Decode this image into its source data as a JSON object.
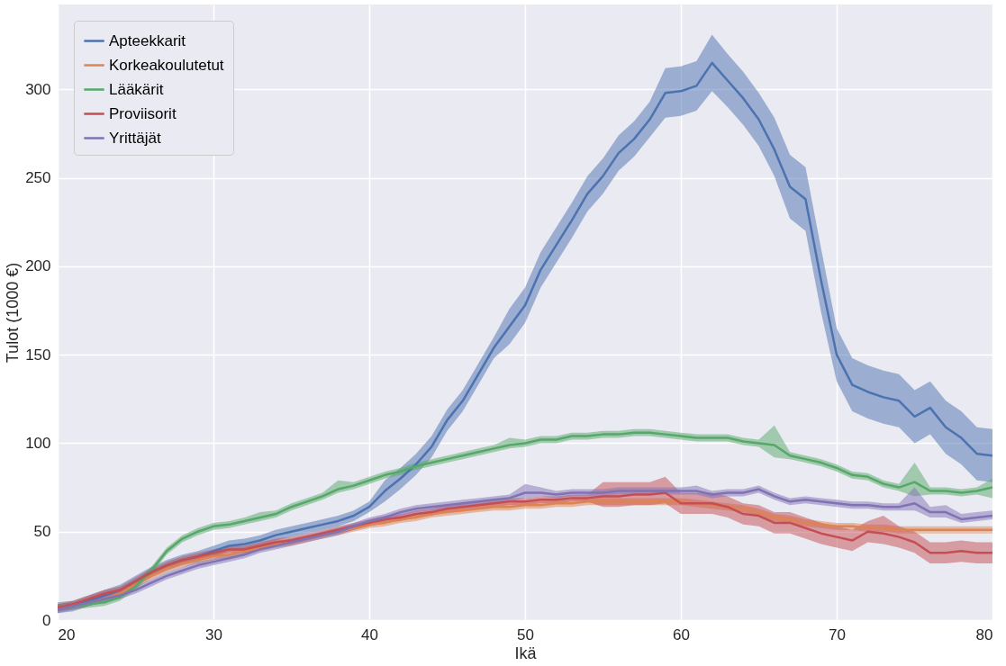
{
  "chart_data": {
    "type": "line",
    "xlabel": "Ikä",
    "ylabel": "Tulot (1000 €)",
    "x": [
      20,
      21,
      22,
      23,
      24,
      25,
      26,
      27,
      28,
      29,
      30,
      31,
      32,
      33,
      34,
      35,
      36,
      37,
      38,
      39,
      40,
      41,
      42,
      43,
      44,
      45,
      46,
      47,
      48,
      49,
      50,
      51,
      52,
      53,
      54,
      55,
      56,
      57,
      58,
      59,
      60,
      61,
      62,
      63,
      64,
      65,
      66,
      67,
      68,
      69,
      70,
      71,
      72,
      73,
      74,
      75,
      76,
      77,
      78,
      79,
      80
    ],
    "xlim": [
      20,
      80
    ],
    "xticks": [
      20,
      30,
      40,
      50,
      60,
      70,
      80
    ],
    "ylim": [
      0,
      348
    ],
    "yticks": [
      0,
      50,
      100,
      150,
      200,
      250,
      300
    ],
    "grid": true,
    "legend": "top left",
    "series": [
      {
        "name": "Apteekkarit",
        "color": "#4c72b0",
        "values": [
          7,
          8,
          11,
          14,
          17,
          22,
          27,
          31,
          34,
          36,
          39,
          42,
          43,
          45,
          48,
          50,
          52,
          54,
          56,
          59,
          64,
          73,
          80,
          88,
          98,
          113,
          124,
          139,
          154,
          166,
          178,
          198,
          212,
          226,
          241,
          251,
          264,
          272,
          283,
          298,
          299,
          302,
          315,
          305,
          295,
          283,
          266,
          245,
          238,
          192,
          150,
          133,
          129,
          126,
          124,
          115,
          120,
          109,
          103,
          94,
          93
        ],
        "lower": [
          4,
          5,
          8,
          11,
          14,
          19,
          24,
          28,
          31,
          33,
          36,
          39,
          40,
          42,
          45,
          47,
          49,
          51,
          53,
          56,
          61,
          67,
          74,
          82,
          92,
          107,
          118,
          133,
          148,
          156,
          168,
          188,
          202,
          216,
          231,
          241,
          254,
          262,
          273,
          284,
          285,
          288,
          299,
          290,
          280,
          268,
          251,
          227,
          220,
          174,
          135,
          118,
          114,
          111,
          109,
          100,
          105,
          94,
          88,
          79,
          78
        ],
        "upper": [
          10,
          11,
          14,
          17,
          20,
          25,
          30,
          34,
          37,
          39,
          42,
          45,
          46,
          48,
          51,
          53,
          55,
          57,
          59,
          62,
          67,
          79,
          86,
          94,
          104,
          119,
          130,
          145,
          160,
          176,
          188,
          208,
          222,
          236,
          251,
          261,
          274,
          282,
          293,
          312,
          313,
          316,
          331,
          320,
          310,
          298,
          284,
          263,
          256,
          210,
          165,
          148,
          144,
          141,
          139,
          130,
          135,
          124,
          118,
          109,
          108
        ]
      },
      {
        "name": "Korkeakoulutetut",
        "color": "#dd8452",
        "values": [
          null,
          null,
          10,
          12,
          15,
          20,
          25,
          29,
          32,
          34,
          36,
          37,
          39,
          41,
          43,
          44,
          46,
          48,
          50,
          52,
          54,
          55,
          57,
          58,
          60,
          61,
          62,
          63,
          64,
          64,
          65,
          65,
          66,
          66,
          67,
          67,
          67,
          67,
          67,
          67,
          67,
          66,
          65,
          64,
          63,
          61,
          58,
          57,
          55,
          54,
          53,
          53,
          52,
          52,
          51,
          51,
          51,
          51,
          51,
          51,
          51
        ],
        "lower": [
          5,
          6,
          8,
          10,
          13,
          18,
          23,
          27,
          30,
          32,
          34,
          35,
          37,
          39,
          41,
          42,
          44,
          46,
          48,
          50,
          52,
          53,
          55,
          56,
          58,
          59,
          60,
          61,
          62,
          62,
          63,
          63,
          64,
          64,
          65,
          65,
          65,
          65,
          65,
          65,
          65,
          64,
          63,
          62,
          61,
          59,
          56,
          55,
          53,
          52,
          51,
          51,
          50,
          50,
          49,
          49,
          49,
          49,
          49,
          49,
          49
        ],
        "upper": [
          9,
          10,
          12,
          14,
          17,
          22,
          27,
          31,
          34,
          36,
          38,
          39,
          41,
          43,
          45,
          46,
          48,
          50,
          52,
          54,
          56,
          57,
          59,
          60,
          62,
          63,
          64,
          65,
          66,
          66,
          67,
          67,
          68,
          68,
          69,
          69,
          69,
          69,
          69,
          69,
          69,
          68,
          67,
          66,
          65,
          63,
          60,
          59,
          57,
          56,
          55,
          55,
          54,
          54,
          53,
          53,
          53,
          53,
          53,
          53,
          53
        ]
      },
      {
        "name": "Lääkärit",
        "color": "#55a868",
        "values": [
          7,
          8,
          9,
          10,
          13,
          19,
          28,
          39,
          46,
          50,
          53,
          54,
          56,
          58,
          60,
          64,
          67,
          70,
          74,
          76,
          79,
          82,
          84,
          87,
          89,
          91,
          93,
          95,
          97,
          99,
          100,
          102,
          102,
          104,
          104,
          105,
          105,
          106,
          106,
          105,
          104,
          103,
          103,
          103,
          101,
          100,
          99,
          93,
          91,
          89,
          86,
          82,
          81,
          77,
          75,
          78,
          73,
          73,
          72,
          73,
          75
        ],
        "lower": [
          5,
          6,
          7,
          8,
          11,
          17,
          26,
          37,
          44,
          48,
          51,
          52,
          54,
          56,
          58,
          62,
          65,
          68,
          72,
          74,
          77,
          80,
          82,
          85,
          87,
          89,
          91,
          93,
          95,
          97,
          98,
          100,
          100,
          102,
          102,
          103,
          103,
          104,
          104,
          103,
          102,
          101,
          101,
          101,
          99,
          98,
          92,
          91,
          89,
          87,
          84,
          80,
          79,
          75,
          73,
          70,
          71,
          71,
          70,
          71,
          69
        ],
        "upper": [
          9,
          10,
          11,
          12,
          15,
          21,
          30,
          41,
          48,
          52,
          55,
          56,
          58,
          61,
          62,
          66,
          69,
          72,
          79,
          78,
          81,
          84,
          86,
          89,
          91,
          93,
          95,
          97,
          99,
          103,
          102,
          104,
          104,
          106,
          106,
          107,
          107,
          108,
          108,
          107,
          106,
          105,
          105,
          105,
          103,
          102,
          110,
          95,
          93,
          91,
          88,
          84,
          83,
          79,
          77,
          89,
          75,
          75,
          74,
          75,
          80
        ]
      },
      {
        "name": "Proviisorit",
        "color": "#c44e52",
        "values": [
          7,
          9,
          12,
          15,
          17,
          22,
          27,
          31,
          34,
          36,
          38,
          40,
          40,
          42,
          44,
          45,
          47,
          49,
          51,
          53,
          55,
          57,
          58,
          60,
          61,
          63,
          64,
          65,
          66,
          67,
          67,
          68,
          68,
          69,
          69,
          70,
          70,
          71,
          71,
          72,
          66,
          66,
          66,
          64,
          60,
          59,
          55,
          55,
          52,
          49,
          47,
          45,
          50,
          49,
          47,
          44,
          38,
          38,
          39,
          38,
          38
        ],
        "lower": [
          5,
          7,
          10,
          13,
          15,
          20,
          25,
          29,
          32,
          34,
          36,
          38,
          38,
          40,
          42,
          43,
          45,
          47,
          49,
          51,
          53,
          55,
          56,
          58,
          59,
          61,
          62,
          63,
          64,
          65,
          65,
          66,
          66,
          67,
          67,
          64,
          64,
          65,
          65,
          66,
          60,
          60,
          60,
          58,
          54,
          53,
          49,
          49,
          46,
          43,
          41,
          39,
          44,
          43,
          41,
          38,
          32,
          32,
          33,
          32,
          32
        ],
        "upper": [
          9,
          11,
          14,
          17,
          19,
          24,
          29,
          33,
          36,
          38,
          40,
          42,
          42,
          44,
          46,
          47,
          49,
          51,
          53,
          55,
          57,
          59,
          60,
          62,
          63,
          65,
          66,
          67,
          68,
          69,
          69,
          70,
          70,
          71,
          71,
          78,
          78,
          78,
          78,
          81,
          72,
          72,
          72,
          70,
          66,
          65,
          61,
          61,
          58,
          55,
          53,
          51,
          56,
          59,
          53,
          50,
          44,
          44,
          45,
          44,
          44
        ]
      },
      {
        "name": "Yrittäjät",
        "color": "#8172b3",
        "values": [
          6,
          8,
          10,
          12,
          14,
          17,
          21,
          25,
          28,
          31,
          33,
          35,
          37,
          40,
          42,
          44,
          46,
          48,
          50,
          53,
          56,
          58,
          61,
          63,
          64,
          65,
          66,
          67,
          68,
          69,
          72,
          72,
          71,
          72,
          72,
          72,
          73,
          73,
          73,
          73,
          73,
          73,
          71,
          72,
          72,
          74,
          70,
          67,
          68,
          67,
          66,
          65,
          65,
          64,
          64,
          66,
          61,
          61,
          57,
          58,
          59
        ],
        "lower": [
          4,
          6,
          8,
          10,
          12,
          15,
          19,
          23,
          26,
          29,
          31,
          33,
          35,
          38,
          40,
          42,
          44,
          46,
          48,
          51,
          54,
          56,
          59,
          61,
          62,
          63,
          64,
          65,
          66,
          67,
          69,
          70,
          69,
          70,
          70,
          70,
          71,
          71,
          71,
          71,
          71,
          71,
          69,
          70,
          70,
          72,
          68,
          65,
          66,
          65,
          64,
          63,
          63,
          62,
          62,
          62,
          58,
          58,
          55,
          56,
          57
        ],
        "upper": [
          8,
          10,
          12,
          14,
          16,
          19,
          23,
          27,
          30,
          33,
          35,
          37,
          39,
          42,
          44,
          46,
          48,
          50,
          52,
          55,
          58,
          60,
          63,
          65,
          66,
          67,
          68,
          69,
          70,
          71,
          77,
          75,
          73,
          74,
          74,
          74,
          75,
          75,
          75,
          75,
          75,
          76,
          73,
          74,
          74,
          76,
          72,
          69,
          70,
          69,
          68,
          67,
          67,
          66,
          66,
          75,
          64,
          65,
          60,
          61,
          62
        ]
      }
    ]
  }
}
